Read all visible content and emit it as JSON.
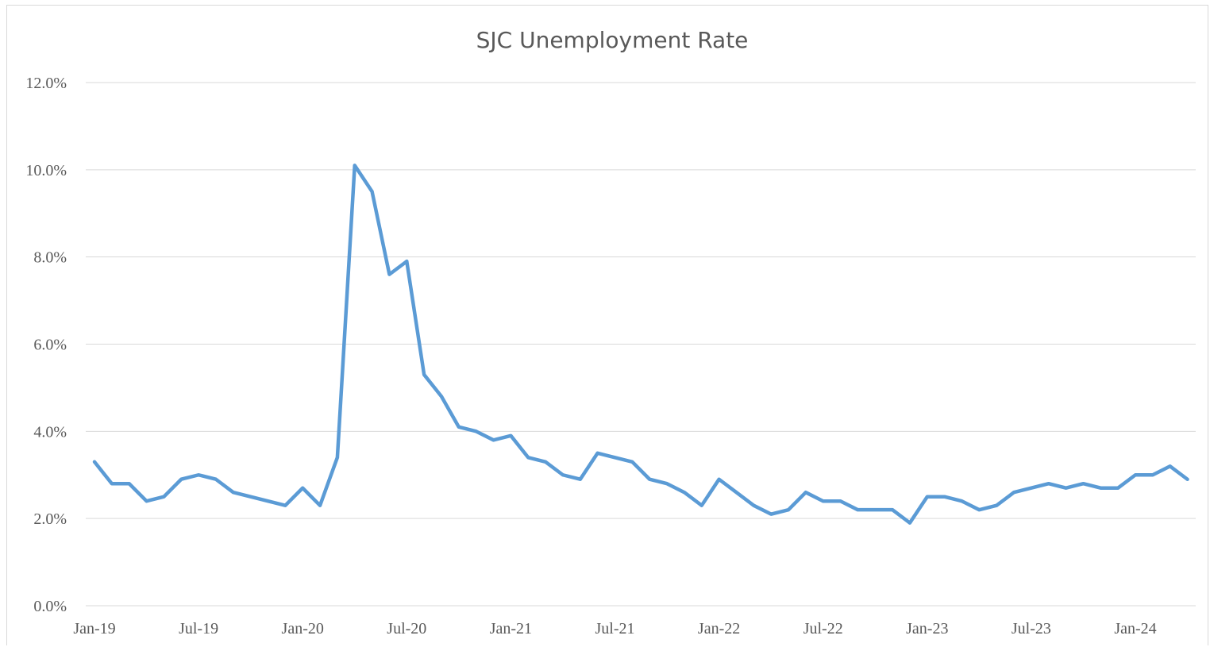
{
  "chart_data": {
    "type": "line",
    "title": "SJC Unemployment Rate",
    "xlabel": "",
    "ylabel": "",
    "ylim": [
      0,
      12
    ],
    "y_ticks": [
      "0.0%",
      "2.0%",
      "4.0%",
      "6.0%",
      "8.0%",
      "10.0%",
      "12.0%"
    ],
    "x_tick_labels": [
      {
        "index": 0,
        "label": "Jan-19"
      },
      {
        "index": 6,
        "label": "Jul-19"
      },
      {
        "index": 12,
        "label": "Jan-20"
      },
      {
        "index": 18,
        "label": "Jul-20"
      },
      {
        "index": 24,
        "label": "Jan-21"
      },
      {
        "index": 30,
        "label": "Jul-21"
      },
      {
        "index": 36,
        "label": "Jan-22"
      },
      {
        "index": 42,
        "label": "Jul-22"
      },
      {
        "index": 48,
        "label": "Jan-23"
      },
      {
        "index": 54,
        "label": "Jul-23"
      },
      {
        "index": 60,
        "label": "Jan-24"
      }
    ],
    "grid": true,
    "legend": "none",
    "series": [
      {
        "color": "#5b9bd5",
        "values": [
          3.3,
          2.8,
          2.8,
          2.4,
          2.5,
          2.9,
          3.0,
          2.9,
          2.6,
          2.5,
          2.4,
          2.3,
          2.7,
          2.3,
          3.4,
          10.1,
          9.5,
          7.6,
          7.9,
          5.3,
          4.8,
          4.1,
          4.0,
          3.8,
          3.9,
          3.4,
          3.3,
          3.0,
          2.9,
          3.5,
          3.4,
          3.3,
          2.9,
          2.8,
          2.6,
          2.3,
          2.9,
          2.6,
          2.3,
          2.1,
          2.2,
          2.6,
          2.4,
          2.4,
          2.2,
          2.2,
          2.2,
          1.9,
          2.5,
          2.5,
          2.4,
          2.2,
          2.3,
          2.6,
          2.7,
          2.8,
          2.7,
          2.8,
          2.7,
          2.7,
          3.0,
          3.0,
          3.2,
          2.9
        ]
      }
    ],
    "colors": {
      "gridline": "#d9d9d9",
      "text": "#595959"
    }
  }
}
